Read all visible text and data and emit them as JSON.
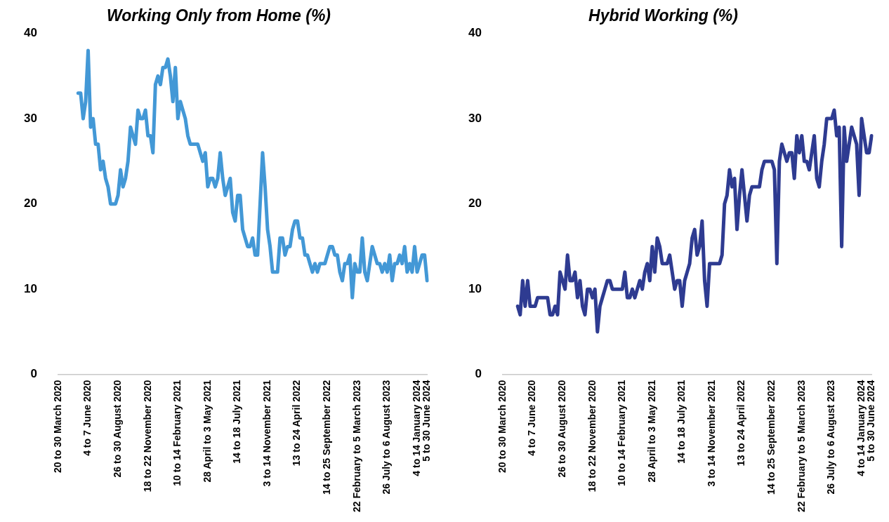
{
  "chart_data": [
    {
      "type": "line",
      "title": "Working Only from Home (%)",
      "categories": [
        "20 to 30 March 2020",
        null,
        null,
        null,
        null,
        null,
        null,
        null,
        null,
        null,
        null,
        null,
        "4 to 7 June 2020",
        null,
        null,
        null,
        null,
        null,
        null,
        null,
        null,
        null,
        null,
        null,
        "26 to 30 August 2020",
        null,
        null,
        null,
        null,
        null,
        null,
        null,
        null,
        null,
        null,
        null,
        "18 to 22 November 2020",
        null,
        null,
        null,
        null,
        null,
        null,
        null,
        null,
        null,
        null,
        null,
        "10 to 14 February 2021",
        null,
        null,
        null,
        null,
        null,
        null,
        null,
        null,
        null,
        null,
        null,
        "28 April to 3 May 2021",
        null,
        null,
        null,
        null,
        null,
        null,
        null,
        null,
        null,
        null,
        null,
        "14 to 18 July 2021",
        null,
        null,
        null,
        null,
        null,
        null,
        null,
        null,
        null,
        null,
        null,
        "3 to 14 November 2021",
        null,
        null,
        null,
        null,
        null,
        null,
        null,
        null,
        null,
        null,
        null,
        "13 to 24 April 2022",
        null,
        null,
        null,
        null,
        null,
        null,
        null,
        null,
        null,
        null,
        null,
        "14 to 25 September 2022",
        null,
        null,
        null,
        null,
        null,
        null,
        null,
        null,
        null,
        null,
        null,
        "22 February to 5 March 2023",
        null,
        null,
        null,
        null,
        null,
        null,
        null,
        null,
        null,
        null,
        null,
        "26 July to 6 August 2023",
        null,
        null,
        null,
        null,
        null,
        null,
        null,
        null,
        null,
        null,
        null,
        "4 to 14 January 2024",
        null,
        null,
        null,
        "5 to 30 June 2024"
      ],
      "series": [
        {
          "color": "#4398d6",
          "values": [
            null,
            null,
            null,
            null,
            null,
            null,
            null,
            null,
            33,
            33,
            30,
            32,
            38,
            29,
            30,
            27,
            27,
            24,
            25,
            23,
            22,
            20,
            20,
            20,
            21,
            24,
            22,
            23,
            25,
            29,
            28,
            27,
            31,
            30,
            30,
            31,
            28,
            28,
            26,
            34,
            35,
            34,
            36,
            36,
            37,
            35,
            32,
            36,
            30,
            32,
            31,
            30,
            28,
            27,
            27,
            27,
            27,
            26,
            25,
            26,
            22,
            23,
            23,
            22,
            23,
            26,
            23,
            21,
            22,
            23,
            19,
            18,
            21,
            21,
            17,
            16,
            15,
            15,
            16,
            14,
            14,
            20,
            26,
            22,
            17,
            15,
            12,
            12,
            12,
            16,
            16,
            14,
            15,
            15,
            17,
            18,
            18,
            16,
            16,
            14,
            14,
            13,
            12,
            13,
            12,
            13,
            13,
            13,
            14,
            15,
            15,
            14,
            14,
            12,
            11,
            13,
            13,
            14,
            9,
            13,
            12,
            12,
            16,
            12,
            11,
            13,
            15,
            14,
            13,
            13,
            12,
            13,
            12,
            14,
            11,
            13,
            13,
            14,
            13,
            15,
            12,
            13,
            12,
            15,
            12,
            13,
            14,
            14,
            11
          ]
        }
      ],
      "ylim": [
        0,
        40
      ],
      "yticks": [
        0,
        10,
        20,
        30,
        40
      ],
      "grid": false,
      "legend": false
    },
    {
      "type": "line",
      "title": "Hybrid Working (%)",
      "categories": [
        "20 to 30 March 2020",
        null,
        null,
        null,
        null,
        null,
        null,
        null,
        null,
        null,
        null,
        null,
        "4 to 7 June 2020",
        null,
        null,
        null,
        null,
        null,
        null,
        null,
        null,
        null,
        null,
        null,
        "26 to 30 August 2020",
        null,
        null,
        null,
        null,
        null,
        null,
        null,
        null,
        null,
        null,
        null,
        "18 to 22 November 2020",
        null,
        null,
        null,
        null,
        null,
        null,
        null,
        null,
        null,
        null,
        null,
        "10 to 14 February 2021",
        null,
        null,
        null,
        null,
        null,
        null,
        null,
        null,
        null,
        null,
        null,
        "28 April to 3 May 2021",
        null,
        null,
        null,
        null,
        null,
        null,
        null,
        null,
        null,
        null,
        null,
        "14 to 18 July 2021",
        null,
        null,
        null,
        null,
        null,
        null,
        null,
        null,
        null,
        null,
        null,
        "3 to 14 November 2021",
        null,
        null,
        null,
        null,
        null,
        null,
        null,
        null,
        null,
        null,
        null,
        "13 to 24 April 2022",
        null,
        null,
        null,
        null,
        null,
        null,
        null,
        null,
        null,
        null,
        null,
        "14 to 25 September 2022",
        null,
        null,
        null,
        null,
        null,
        null,
        null,
        null,
        null,
        null,
        null,
        "22 February to 5 March 2023",
        null,
        null,
        null,
        null,
        null,
        null,
        null,
        null,
        null,
        null,
        null,
        "26 July to 6 August 2023",
        null,
        null,
        null,
        null,
        null,
        null,
        null,
        null,
        null,
        null,
        null,
        "4 to 14 January 2024",
        null,
        null,
        null,
        "5 to 30 June 2024"
      ],
      "series": [
        {
          "color": "#2e3b91",
          "values": [
            null,
            null,
            null,
            null,
            null,
            null,
            8,
            7,
            11,
            8,
            11,
            8,
            8,
            8,
            9,
            9,
            9,
            9,
            9,
            7,
            7,
            8,
            7,
            12,
            11,
            10,
            14,
            11,
            11,
            12,
            9,
            11,
            8,
            7,
            10,
            10,
            9,
            10,
            5,
            8,
            9,
            10,
            11,
            11,
            10,
            10,
            10,
            10,
            10,
            12,
            9,
            9,
            10,
            9,
            10,
            11,
            10,
            12,
            13,
            11,
            15,
            12,
            16,
            15,
            13,
            13,
            13,
            14,
            12,
            10,
            11,
            11,
            8,
            11,
            12,
            13,
            16,
            17,
            14,
            15,
            18,
            11,
            8,
            13,
            13,
            13,
            13,
            13,
            14,
            20,
            21,
            24,
            22,
            23,
            17,
            21,
            24,
            21,
            18,
            21,
            22,
            22,
            22,
            22,
            24,
            25,
            25,
            25,
            25,
            24,
            13,
            25,
            27,
            26,
            25,
            26,
            26,
            23,
            28,
            26,
            28,
            25,
            25,
            24,
            26,
            28,
            23,
            22,
            25,
            27,
            30,
            30,
            30,
            31,
            28,
            29,
            15,
            29,
            25,
            27,
            29,
            28,
            27,
            21,
            30,
            28,
            26,
            26,
            28
          ]
        }
      ],
      "ylim": [
        0,
        40
      ],
      "yticks": [
        0,
        10,
        20,
        30,
        40
      ],
      "grid": false,
      "legend": false
    }
  ]
}
